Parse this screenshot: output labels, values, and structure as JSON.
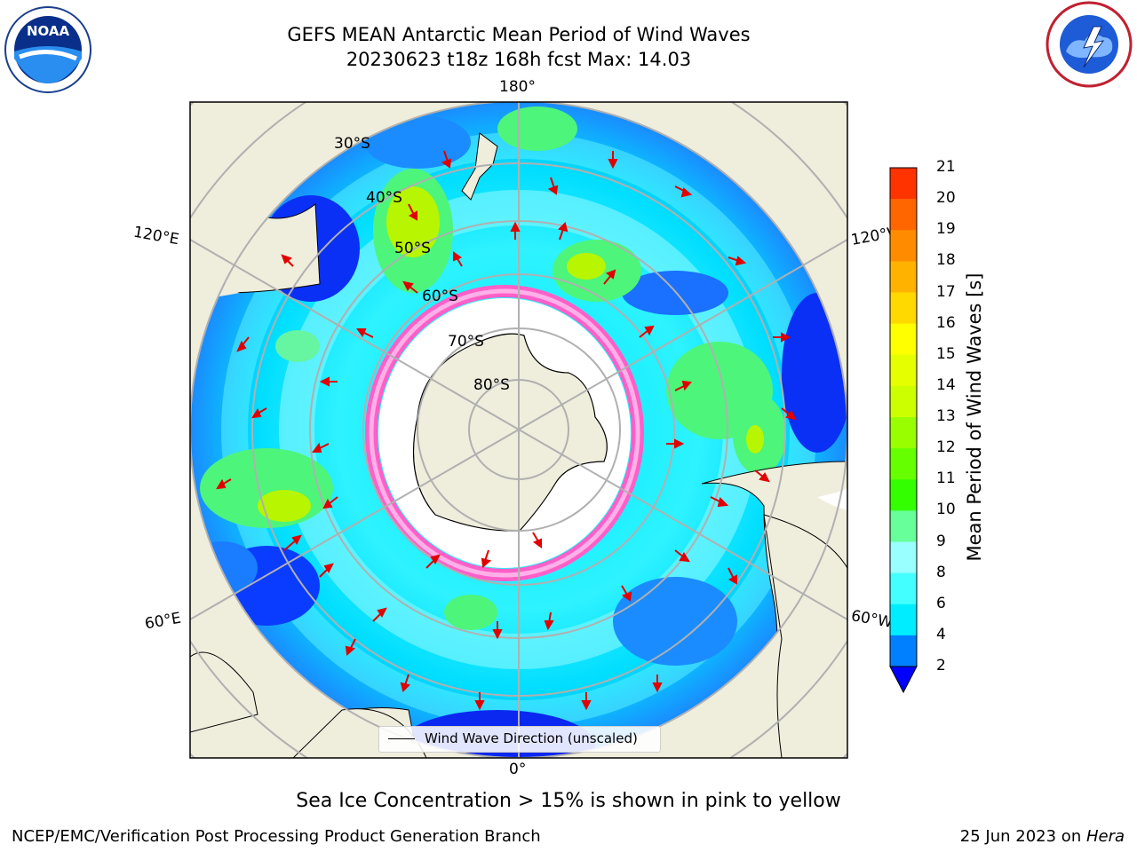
{
  "title_line1": "GEFS MEAN Antarctic Mean Period of Wind Waves",
  "title_line2": "20230623 t18z 168h fcst   Max: 14.03",
  "logos": {
    "left": "NOAA",
    "right": "NATIONAL WEATHER SERVICE"
  },
  "map": {
    "projection": "south polar stereographic",
    "longitude_labels": {
      "top": "180°",
      "bottom": "0°",
      "upper_left": "120°E",
      "upper_right": "120°W",
      "lower_left": "60°E",
      "lower_right": "60°W"
    },
    "latitude_labels": [
      "30°S",
      "40°S",
      "50°S",
      "60°S",
      "70°S",
      "80°S"
    ],
    "legend_label": "Wind Wave Direction (unscaled)"
  },
  "colorbar": {
    "label": "Mean Period of Wind Waves [s]",
    "ticks": [
      "21",
      "20",
      "19",
      "18",
      "17",
      "16",
      "15",
      "14",
      "13",
      "12",
      "11",
      "10",
      "9",
      "8",
      "6",
      "4",
      "2"
    ],
    "colors": [
      "#ff0000",
      "#ff3300",
      "#ff6600",
      "#ff8c00",
      "#ffb300",
      "#ffd900",
      "#ffff00",
      "#e6ff00",
      "#ccff00",
      "#99ff00",
      "#66ff00",
      "#33ff00",
      "#66ff99",
      "#99ffff",
      "#44ffff",
      "#00ecff",
      "#0080ff"
    ],
    "under_color": "#0000ff"
  },
  "note": "Sea Ice Concentration > 15% is shown in pink to yellow",
  "footer": {
    "left": "NCEP/EMC/Verification Post Processing Product Generation Branch",
    "right_date": "25 Jun 2023 on ",
    "right_machine": "Hera"
  }
}
